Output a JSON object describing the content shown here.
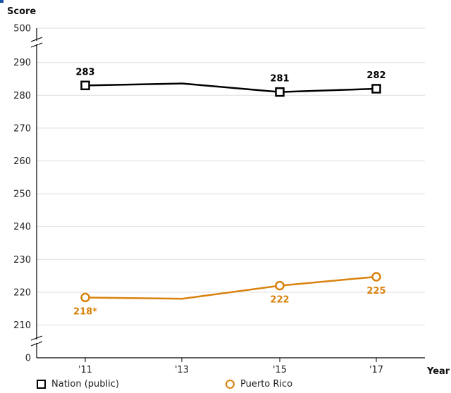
{
  "chart_data": {
    "type": "line",
    "ylabel": "Score",
    "xlabel": "Year",
    "categories": [
      "'11",
      "'13",
      "'15",
      "'17"
    ],
    "yticks": [
      0,
      210,
      220,
      230,
      240,
      250,
      260,
      270,
      280,
      290,
      500
    ],
    "axis_break": true,
    "grid": true,
    "legend_position": "bottom",
    "series": [
      {
        "name": "Nation (public)",
        "color": "#000000",
        "marker": "square",
        "values": [
          283,
          283.6,
          281,
          282
        ],
        "labels": [
          "283",
          "",
          "281",
          "282"
        ]
      },
      {
        "name": "Puerto Rico",
        "color": "#d9820e",
        "marker": "circle",
        "values": [
          218.4,
          218,
          222,
          224.7
        ],
        "labels": [
          "218*",
          "",
          "222",
          "225"
        ]
      }
    ]
  }
}
